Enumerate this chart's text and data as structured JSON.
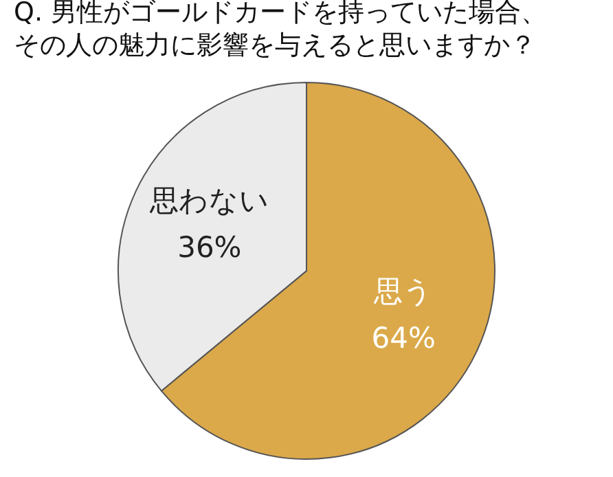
{
  "chart_data": {
    "type": "pie",
    "title": "Q. 男性がゴールドカードを持っていた場合、その人の魅力に影響を与えると思いますか？",
    "categories": [
      "思う",
      "思わない"
    ],
    "values": [
      64,
      36
    ],
    "colors": [
      "#dba94a",
      "#ebebeb"
    ],
    "value_labels": [
      "64%",
      "36%"
    ]
  }
}
